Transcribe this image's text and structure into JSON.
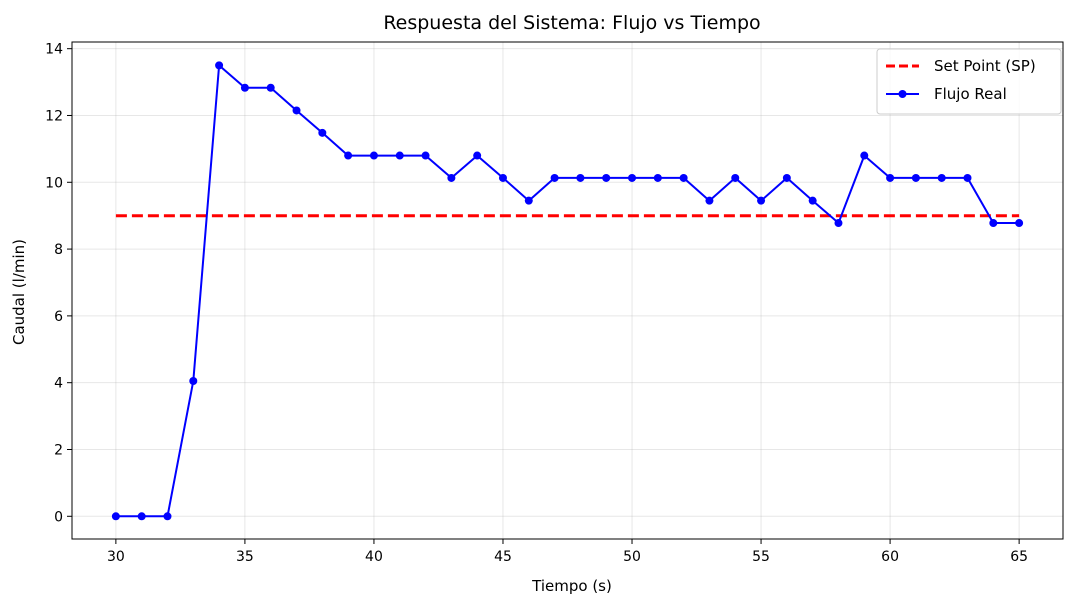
{
  "chart_data": {
    "type": "line",
    "title": "Respuesta del Sistema: Flujo vs Tiempo",
    "xlabel": "Tiempo (s)",
    "ylabel": "Caudal (l/min)",
    "xlim": [
      28.3,
      66.7
    ],
    "ylim": [
      -0.68,
      14.2
    ],
    "xticks": [
      30,
      35,
      40,
      45,
      50,
      55,
      60,
      65
    ],
    "yticks": [
      0,
      2,
      4,
      6,
      8,
      10,
      12,
      14
    ],
    "grid": true,
    "legend_position": "top-right",
    "series": [
      {
        "name": "Set Point (SP)",
        "style": "dashed",
        "color": "#ff0000",
        "x": [
          30,
          65
        ],
        "y": [
          9,
          9
        ]
      },
      {
        "name": "Flujo Real",
        "style": "line-marker",
        "color": "#0000ff",
        "x": [
          30,
          31,
          32,
          33,
          34,
          35,
          36,
          37,
          38,
          39,
          40,
          41,
          42,
          43,
          44,
          45,
          46,
          47,
          48,
          49,
          50,
          51,
          52,
          53,
          54,
          55,
          56,
          57,
          58,
          59,
          60,
          61,
          62,
          63,
          64,
          65
        ],
        "y": [
          0,
          0,
          0,
          4.05,
          13.5,
          12.83,
          12.83,
          12.15,
          11.48,
          10.8,
          10.8,
          10.8,
          10.8,
          10.13,
          10.8,
          10.13,
          9.45,
          10.13,
          10.13,
          10.13,
          10.13,
          10.13,
          10.13,
          9.45,
          10.13,
          9.45,
          10.13,
          9.45,
          8.78,
          10.8,
          10.13,
          10.13,
          10.13,
          10.13,
          8.78,
          8.78
        ]
      }
    ]
  }
}
